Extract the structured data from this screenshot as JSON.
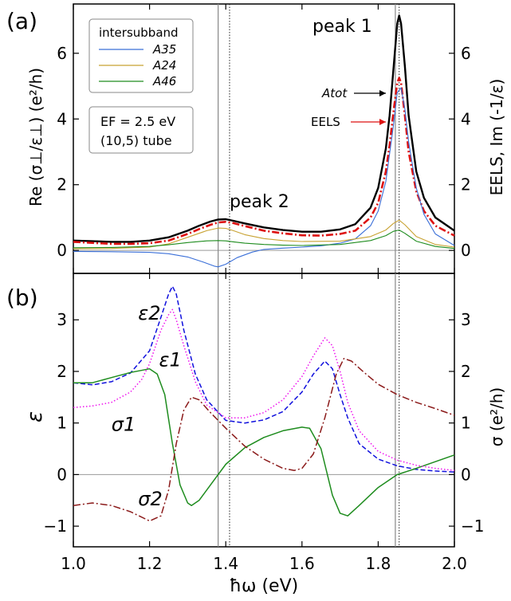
{
  "chart_data": [
    {
      "type": "line",
      "panel_label": "(a)",
      "ylabel_left": "Re (σ⊥/ε⊥) (e²/h)",
      "ylabel_right": "EELS, Im (-1/ε)",
      "xlim": [
        1.0,
        2.0
      ],
      "ylim": [
        -0.7,
        7.5
      ],
      "x_ticks": [
        1.0,
        1.2,
        1.4,
        1.6,
        1.8,
        2.0
      ],
      "y_ticks": [
        0,
        2,
        4,
        6
      ],
      "y_tick_labels": [
        "0",
        "2",
        "4",
        "6"
      ],
      "legend": {
        "title": "intersubband",
        "placement": "top-left",
        "entries": [
          {
            "label": "A35",
            "color": "#3a6fd8"
          },
          {
            "label": "A24",
            "color": "#c8a232"
          },
          {
            "label": "A46",
            "color": "#1e8c1e"
          }
        ]
      },
      "info_box": [
        "EF = 2.5 eV",
        "(10,5) tube"
      ],
      "annotations": [
        {
          "text": "peak 1",
          "x": 1.78,
          "y": 6.8
        },
        {
          "text": "peak 2",
          "x": 1.49,
          "y": 1.4
        },
        {
          "text": "Atot",
          "arrow_to": [
            1.84,
            4.8
          ]
        },
        {
          "text": "EELS",
          "arrow_to": [
            1.84,
            3.9
          ]
        }
      ],
      "vlines_solid": [
        1.38,
        1.845
      ],
      "vlines_dotted": [
        1.41,
        1.855
      ],
      "hline": 0,
      "series": [
        {
          "name": "Atot",
          "color": "#000000",
          "style": "solid",
          "x": [
            1.0,
            1.05,
            1.1,
            1.15,
            1.2,
            1.25,
            1.3,
            1.33,
            1.36,
            1.38,
            1.4,
            1.42,
            1.45,
            1.5,
            1.55,
            1.6,
            1.65,
            1.7,
            1.74,
            1.78,
            1.8,
            1.82,
            1.83,
            1.84,
            1.85,
            1.855,
            1.86,
            1.87,
            1.88,
            1.9,
            1.92,
            1.95,
            2.0
          ],
          "y": [
            0.3,
            0.28,
            0.26,
            0.26,
            0.3,
            0.4,
            0.6,
            0.75,
            0.88,
            0.94,
            0.95,
            0.9,
            0.82,
            0.7,
            0.62,
            0.57,
            0.57,
            0.64,
            0.8,
            1.3,
            1.9,
            3.1,
            4.1,
            5.5,
            6.9,
            7.15,
            6.9,
            5.6,
            4.1,
            2.4,
            1.6,
            1.0,
            0.6
          ]
        },
        {
          "name": "EELS",
          "color": "#dd1111",
          "style": "dash-dot",
          "x": [
            1.0,
            1.05,
            1.1,
            1.15,
            1.2,
            1.25,
            1.3,
            1.33,
            1.36,
            1.38,
            1.4,
            1.42,
            1.45,
            1.5,
            1.55,
            1.6,
            1.65,
            1.7,
            1.74,
            1.78,
            1.8,
            1.82,
            1.83,
            1.84,
            1.85,
            1.855,
            1.86,
            1.87,
            1.88,
            1.9,
            1.92,
            1.95,
            2.0
          ],
          "y": [
            0.26,
            0.23,
            0.2,
            0.2,
            0.22,
            0.3,
            0.5,
            0.65,
            0.78,
            0.85,
            0.87,
            0.83,
            0.74,
            0.6,
            0.52,
            0.46,
            0.45,
            0.5,
            0.6,
            1.0,
            1.45,
            2.4,
            3.2,
            4.2,
            5.1,
            5.25,
            5.1,
            4.1,
            3.0,
            1.8,
            1.2,
            0.75,
            0.45
          ]
        },
        {
          "name": "A35",
          "color": "#3a6fd8",
          "style": "solid",
          "x": [
            1.0,
            1.1,
            1.2,
            1.25,
            1.3,
            1.34,
            1.37,
            1.38,
            1.4,
            1.43,
            1.47,
            1.5,
            1.55,
            1.6,
            1.65,
            1.7,
            1.74,
            1.78,
            1.8,
            1.82,
            1.84,
            1.85,
            1.86,
            1.87,
            1.88,
            1.9,
            1.92,
            1.95,
            2.0
          ],
          "y": [
            -0.03,
            -0.04,
            -0.06,
            -0.1,
            -0.2,
            -0.35,
            -0.48,
            -0.5,
            -0.42,
            -0.22,
            -0.05,
            0.03,
            0.07,
            0.1,
            0.14,
            0.22,
            0.35,
            0.75,
            1.2,
            2.1,
            3.8,
            4.8,
            4.95,
            4.3,
            3.3,
            1.9,
            1.1,
            0.5,
            0.15
          ]
        },
        {
          "name": "A24",
          "color": "#c8a232",
          "style": "solid",
          "x": [
            1.0,
            1.1,
            1.2,
            1.25,
            1.3,
            1.35,
            1.38,
            1.4,
            1.42,
            1.45,
            1.5,
            1.55,
            1.6,
            1.7,
            1.78,
            1.82,
            1.84,
            1.855,
            1.87,
            1.9,
            1.95,
            2.0
          ],
          "y": [
            0.05,
            0.06,
            0.1,
            0.2,
            0.4,
            0.6,
            0.68,
            0.67,
            0.6,
            0.48,
            0.36,
            0.3,
            0.27,
            0.28,
            0.42,
            0.62,
            0.82,
            0.92,
            0.78,
            0.42,
            0.18,
            0.1
          ]
        },
        {
          "name": "A46",
          "color": "#1e8c1e",
          "style": "solid",
          "x": [
            1.0,
            1.1,
            1.2,
            1.25,
            1.3,
            1.35,
            1.38,
            1.4,
            1.42,
            1.45,
            1.5,
            1.55,
            1.6,
            1.7,
            1.78,
            1.82,
            1.84,
            1.855,
            1.87,
            1.9,
            1.95,
            2.0
          ],
          "y": [
            0.08,
            0.09,
            0.12,
            0.17,
            0.24,
            0.29,
            0.3,
            0.29,
            0.26,
            0.22,
            0.18,
            0.16,
            0.15,
            0.18,
            0.3,
            0.45,
            0.58,
            0.62,
            0.52,
            0.28,
            0.12,
            0.06
          ]
        }
      ]
    },
    {
      "type": "line",
      "panel_label": "(b)",
      "ylabel_left": "ε",
      "ylabel_right": "σ (e²/h)",
      "xlabel": "ħω (eV)",
      "xlim": [
        1.0,
        2.0
      ],
      "ylim": [
        -1.4,
        3.9
      ],
      "x_ticks": [
        1.0,
        1.2,
        1.4,
        1.6,
        1.8,
        2.0
      ],
      "x_tick_labels": [
        "1.0",
        "1.2",
        "1.4",
        "1.6",
        "1.8",
        "2.0"
      ],
      "y_ticks": [
        -1,
        0,
        1,
        2,
        3
      ],
      "y_tick_labels": [
        "−1",
        "0",
        "1",
        "2",
        "3"
      ],
      "vlines_solid": [
        1.38,
        1.845
      ],
      "vlines_dotted": [
        1.41,
        1.855
      ],
      "hline": 0,
      "series": [
        {
          "name": "ε2",
          "color": "#1010dd",
          "style": "dashed",
          "label_at": [
            1.17,
            3.0
          ],
          "x": [
            1.0,
            1.05,
            1.1,
            1.15,
            1.2,
            1.23,
            1.25,
            1.26,
            1.27,
            1.29,
            1.32,
            1.35,
            1.4,
            1.45,
            1.5,
            1.55,
            1.6,
            1.63,
            1.66,
            1.68,
            1.7,
            1.72,
            1.75,
            1.8,
            1.85,
            1.9,
            1.95,
            2.0
          ],
          "y": [
            1.78,
            1.74,
            1.8,
            1.97,
            2.4,
            3.05,
            3.5,
            3.65,
            3.5,
            2.8,
            1.95,
            1.45,
            1.05,
            1.0,
            1.06,
            1.22,
            1.6,
            1.95,
            2.2,
            2.05,
            1.55,
            1.1,
            0.6,
            0.3,
            0.17,
            0.1,
            0.07,
            0.05
          ]
        },
        {
          "name": "ε1",
          "color": "#1e8c1e",
          "style": "solid",
          "label_at": [
            1.225,
            2.1
          ],
          "x": [
            1.0,
            1.05,
            1.1,
            1.15,
            1.2,
            1.22,
            1.24,
            1.26,
            1.28,
            1.3,
            1.31,
            1.33,
            1.36,
            1.4,
            1.45,
            1.5,
            1.55,
            1.6,
            1.62,
            1.65,
            1.68,
            1.7,
            1.72,
            1.75,
            1.8,
            1.85,
            1.9,
            1.95,
            2.0
          ],
          "y": [
            1.78,
            1.78,
            1.88,
            1.98,
            2.05,
            1.95,
            1.55,
            0.6,
            -0.2,
            -0.55,
            -0.6,
            -0.5,
            -0.2,
            0.2,
            0.52,
            0.72,
            0.85,
            0.92,
            0.9,
            0.5,
            -0.4,
            -0.75,
            -0.8,
            -0.6,
            -0.25,
            0.0,
            0.12,
            0.25,
            0.38
          ]
        },
        {
          "name": "σ1",
          "color": "#ee11ee",
          "style": "dotted",
          "label_at": [
            1.1,
            0.85
          ],
          "x": [
            1.0,
            1.05,
            1.1,
            1.15,
            1.18,
            1.2,
            1.23,
            1.25,
            1.26,
            1.27,
            1.29,
            1.32,
            1.35,
            1.4,
            1.45,
            1.5,
            1.55,
            1.6,
            1.63,
            1.66,
            1.68,
            1.7,
            1.72,
            1.75,
            1.8,
            1.85,
            1.9,
            1.95,
            2.0
          ],
          "y": [
            1.3,
            1.33,
            1.4,
            1.6,
            1.85,
            2.15,
            2.8,
            3.1,
            3.2,
            3.0,
            2.5,
            1.8,
            1.35,
            1.1,
            1.1,
            1.2,
            1.45,
            1.9,
            2.3,
            2.65,
            2.5,
            2.0,
            1.4,
            0.85,
            0.45,
            0.28,
            0.18,
            0.12,
            0.08
          ]
        },
        {
          "name": "σ2",
          "color": "#8b1a1a",
          "style": "dash-dot",
          "label_at": [
            1.17,
            -0.6
          ],
          "x": [
            1.0,
            1.05,
            1.1,
            1.15,
            1.2,
            1.23,
            1.25,
            1.27,
            1.29,
            1.31,
            1.33,
            1.36,
            1.4,
            1.45,
            1.5,
            1.55,
            1.58,
            1.6,
            1.63,
            1.66,
            1.69,
            1.71,
            1.73,
            1.76,
            1.8,
            1.85,
            1.9,
            1.95,
            2.0
          ],
          "y": [
            -0.6,
            -0.55,
            -0.6,
            -0.72,
            -0.9,
            -0.8,
            -0.3,
            0.6,
            1.25,
            1.5,
            1.45,
            1.2,
            0.9,
            0.55,
            0.3,
            0.12,
            0.08,
            0.12,
            0.4,
            1.1,
            1.95,
            2.25,
            2.2,
            2.0,
            1.75,
            1.55,
            1.4,
            1.28,
            1.15
          ]
        }
      ]
    }
  ]
}
